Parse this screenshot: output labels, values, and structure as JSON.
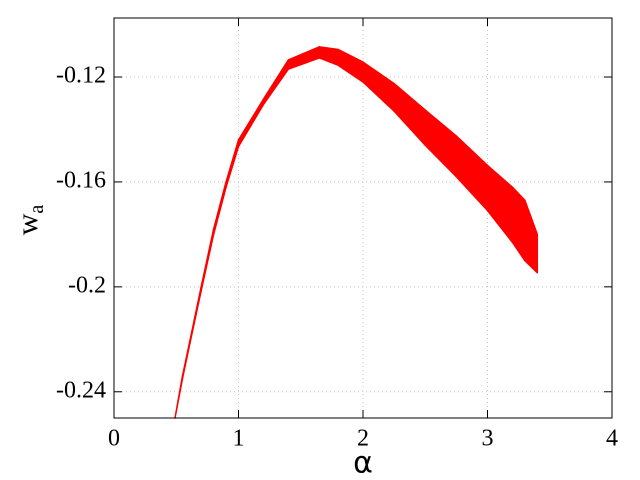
{
  "chart_data": {
    "type": "band",
    "xlabel": "α",
    "ylabel": "w",
    "ylabel_subscript": "a",
    "x": [
      0.49,
      0.55,
      0.61,
      0.7,
      0.8,
      0.9,
      1.0,
      1.2,
      1.4,
      1.65,
      1.8,
      2.0,
      2.25,
      2.5,
      2.75,
      3.0,
      3.2,
      3.3,
      3.4
    ],
    "upper": [
      -0.25,
      -0.234,
      -0.2205,
      -0.2,
      -0.178,
      -0.16,
      -0.144,
      -0.1285,
      -0.1135,
      -0.1085,
      -0.1095,
      -0.1143,
      -0.1225,
      -0.1326,
      -0.1425,
      -0.1537,
      -0.162,
      -0.167,
      -0.18
    ],
    "lower": [
      -0.25,
      -0.235,
      -0.2215,
      -0.2015,
      -0.18,
      -0.162,
      -0.1465,
      -0.1305,
      -0.117,
      -0.1127,
      -0.1155,
      -0.1219,
      -0.133,
      -0.146,
      -0.158,
      -0.1709,
      -0.183,
      -0.19,
      -0.1946
    ],
    "color": "#ff0000",
    "xlim": [
      0,
      4
    ],
    "xticks": [
      0,
      1,
      2,
      3,
      4
    ],
    "ylim": [
      -0.25,
      -0.0975
    ],
    "yticks": [
      -0.24,
      -0.2,
      -0.16,
      -0.12
    ],
    "grid": true
  }
}
